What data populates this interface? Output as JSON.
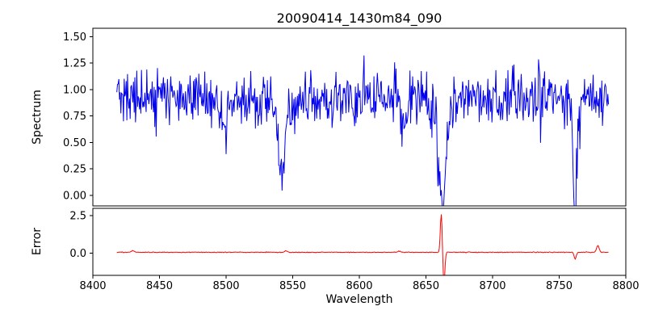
{
  "chart_data": [
    {
      "type": "line",
      "title": "20090414_1430m84_090",
      "xlabel": "Wavelength",
      "ylabel": "Spectrum",
      "color": "#0000ee",
      "xlim": [
        8400,
        8800
      ],
      "ylim": [
        -0.1,
        1.58
      ],
      "x_start": 8418,
      "x_end": 8787,
      "x_step": 0.5,
      "xticks": [
        8400,
        8450,
        8500,
        8550,
        8600,
        8650,
        8700,
        8750,
        8800
      ],
      "xtick_labels": [
        "8400",
        "8450",
        "8500",
        "8550",
        "8600",
        "8650",
        "8700",
        "8750",
        "8800"
      ],
      "yticks": [
        1.5,
        1.25,
        1.0,
        0.75,
        0.5,
        0.25,
        0.0
      ],
      "ytick_labels": [
        "1.50",
        "1.25",
        "1.00",
        "0.75",
        "0.50",
        "0.25",
        "0.00"
      ],
      "baseline": 0.92,
      "noise_std": 0.13,
      "burst_prob": 0.07,
      "burst_amp": 0.6,
      "noise_seed": 20090414,
      "absorption_lines": [
        {
          "center": 8498,
          "depth": 0.25,
          "width": 1.8
        },
        {
          "center": 8542,
          "depth": 0.6,
          "width": 2.2
        },
        {
          "center": 8542,
          "depth": 0.14,
          "width": 7.0
        },
        {
          "center": 8662,
          "depth": 0.9,
          "width": 2.2
        },
        {
          "center": 8662,
          "depth": 0.18,
          "width": 8.0
        },
        {
          "center": 8634,
          "depth": 0.25,
          "width": 2.0
        },
        {
          "center": 8762,
          "depth": 0.97,
          "width": 1.3
        }
      ]
    },
    {
      "type": "line",
      "ylabel": "Error",
      "color": "#ff0000",
      "ylim": [
        -1.5,
        3.0
      ],
      "yticks": [
        2.5,
        0.0
      ],
      "ytick_labels": [
        "2.5",
        "0.0"
      ],
      "baseline": 0.05,
      "noise_std": 0.012,
      "noise_seed": 90,
      "spikes": [
        {
          "center": 8430,
          "amp": 0.12,
          "width": 1.0
        },
        {
          "center": 8545,
          "amp": 0.1,
          "width": 1.0
        },
        {
          "center": 8630,
          "amp": 0.08,
          "width": 1.0
        },
        {
          "center": 8661.5,
          "amp": 2.55,
          "width": 0.7
        },
        {
          "center": 8663.5,
          "amp": -2.2,
          "width": 0.7
        },
        {
          "center": 8762,
          "amp": -0.45,
          "width": 0.8
        },
        {
          "center": 8779,
          "amp": 0.45,
          "width": 1.0
        }
      ]
    }
  ]
}
